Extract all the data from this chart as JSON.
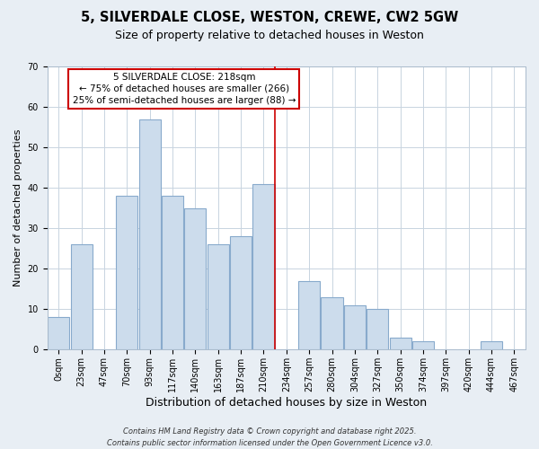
{
  "title": "5, SILVERDALE CLOSE, WESTON, CREWE, CW2 5GW",
  "subtitle": "Size of property relative to detached houses in Weston",
  "xlabel": "Distribution of detached houses by size in Weston",
  "ylabel": "Number of detached properties",
  "bar_labels": [
    "0sqm",
    "23sqm",
    "47sqm",
    "70sqm",
    "93sqm",
    "117sqm",
    "140sqm",
    "163sqm",
    "187sqm",
    "210sqm",
    "234sqm",
    "257sqm",
    "280sqm",
    "304sqm",
    "327sqm",
    "350sqm",
    "374sqm",
    "397sqm",
    "420sqm",
    "444sqm",
    "467sqm"
  ],
  "bar_values": [
    8,
    26,
    0,
    38,
    57,
    38,
    35,
    26,
    28,
    41,
    0,
    17,
    13,
    11,
    10,
    3,
    2,
    0,
    0,
    2,
    0
  ],
  "bar_color": "#ccdcec",
  "bar_edge_color": "#88aacc",
  "ylim": [
    0,
    70
  ],
  "yticks": [
    0,
    10,
    20,
    30,
    40,
    50,
    60,
    70
  ],
  "vline_x": 9.5,
  "vline_color": "#cc0000",
  "annotation_text": "5 SILVERDALE CLOSE: 218sqm\n← 75% of detached houses are smaller (266)\n25% of semi-detached houses are larger (88) →",
  "annotation_box_color": "#ffffff",
  "annotation_box_edge_color": "#cc0000",
  "footer_line1": "Contains HM Land Registry data © Crown copyright and database right 2025.",
  "footer_line2": "Contains public sector information licensed under the Open Government Licence v3.0.",
  "background_color": "#e8eef4",
  "plot_background_color": "#ffffff",
  "grid_color": "#c8d4e0",
  "title_fontsize": 10.5,
  "subtitle_fontsize": 9,
  "xlabel_fontsize": 9,
  "ylabel_fontsize": 8,
  "tick_fontsize": 7,
  "annotation_fontsize": 7.5,
  "footer_fontsize": 6
}
